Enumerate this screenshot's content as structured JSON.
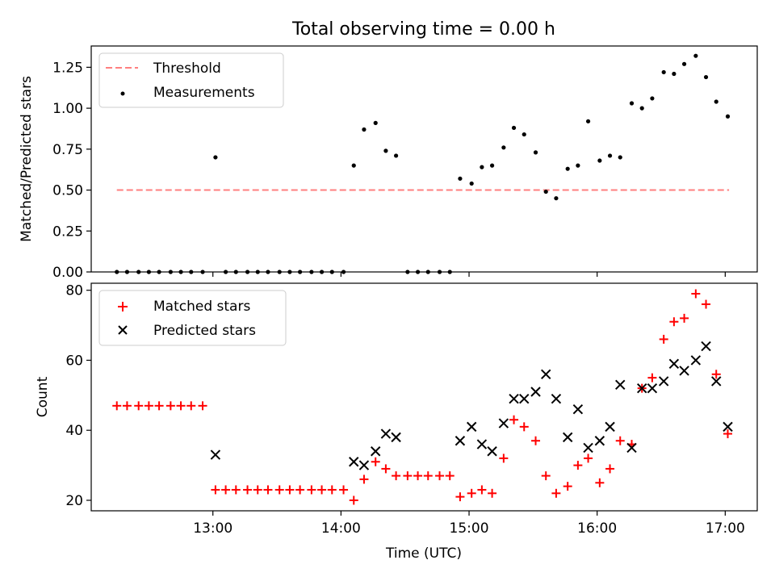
{
  "title": "Total observing time = 0.00 h",
  "colors": {
    "threshold": "#ff7f7f",
    "measurements": "#000000",
    "matched": "#ff0000",
    "predicted": "#000000"
  },
  "chart_data": [
    {
      "type": "scatter",
      "title": "Total observing time = 0.00 h",
      "xlabel": "",
      "ylabel": "Matched/Predicted stars",
      "x_unit": "hours UTC",
      "xlim": [
        12.05,
        17.25
      ],
      "ylim": [
        0,
        1.38
      ],
      "yticks": [
        0.0,
        0.25,
        0.5,
        0.75,
        1.0,
        1.25
      ],
      "ytick_labels": [
        "0.00",
        "0.25",
        "0.50",
        "0.75",
        "1.00",
        "1.25"
      ],
      "xticks": [
        13,
        14,
        15,
        16,
        17
      ],
      "legend_position": "top-left",
      "legend": [
        "Threshold",
        "Measurements"
      ],
      "threshold": {
        "name": "Threshold",
        "y": 0.5,
        "x_range": [
          12.25,
          17.03
        ],
        "style": "dashed"
      },
      "series": [
        {
          "name": "Measurements",
          "marker": "dot",
          "points": [
            [
              12.25,
              0.0
            ],
            [
              12.33,
              0.0
            ],
            [
              12.42,
              0.0
            ],
            [
              12.5,
              0.0
            ],
            [
              12.58,
              0.0
            ],
            [
              12.67,
              0.0
            ],
            [
              12.75,
              0.0
            ],
            [
              12.83,
              0.0
            ],
            [
              12.92,
              0.0
            ],
            [
              13.02,
              0.7
            ],
            [
              13.1,
              0.0
            ],
            [
              13.18,
              0.0
            ],
            [
              13.27,
              0.0
            ],
            [
              13.35,
              0.0
            ],
            [
              13.43,
              0.0
            ],
            [
              13.52,
              0.0
            ],
            [
              13.6,
              0.0
            ],
            [
              13.68,
              0.0
            ],
            [
              13.77,
              0.0
            ],
            [
              13.85,
              0.0
            ],
            [
              13.93,
              0.0
            ],
            [
              14.02,
              0.0
            ],
            [
              14.1,
              0.65
            ],
            [
              14.18,
              0.87
            ],
            [
              14.27,
              0.91
            ],
            [
              14.35,
              0.74
            ],
            [
              14.43,
              0.71
            ],
            [
              14.52,
              0.0
            ],
            [
              14.6,
              0.0
            ],
            [
              14.68,
              0.0
            ],
            [
              14.77,
              0.0
            ],
            [
              14.85,
              0.0
            ],
            [
              14.93,
              0.57
            ],
            [
              15.02,
              0.54
            ],
            [
              15.1,
              0.64
            ],
            [
              15.18,
              0.65
            ],
            [
              15.27,
              0.76
            ],
            [
              15.35,
              0.88
            ],
            [
              15.43,
              0.84
            ],
            [
              15.52,
              0.73
            ],
            [
              15.6,
              0.49
            ],
            [
              15.68,
              0.45
            ],
            [
              15.77,
              0.63
            ],
            [
              15.85,
              0.65
            ],
            [
              15.93,
              0.92
            ],
            [
              16.02,
              0.68
            ],
            [
              16.1,
              0.71
            ],
            [
              16.18,
              0.7
            ],
            [
              16.27,
              1.03
            ],
            [
              16.35,
              1.0
            ],
            [
              16.43,
              1.06
            ],
            [
              16.52,
              1.22
            ],
            [
              16.6,
              1.21
            ],
            [
              16.68,
              1.27
            ],
            [
              16.77,
              1.32
            ],
            [
              16.85,
              1.19
            ],
            [
              16.93,
              1.04
            ],
            [
              17.02,
              0.95
            ]
          ]
        }
      ]
    },
    {
      "type": "scatter",
      "xlabel": "Time (UTC)",
      "ylabel": "Count",
      "x_unit": "hours UTC",
      "xlim": [
        12.05,
        17.25
      ],
      "ylim": [
        17,
        82
      ],
      "yticks": [
        20,
        40,
        60,
        80
      ],
      "ytick_labels": [
        "20",
        "40",
        "60",
        "80"
      ],
      "xticks": [
        13,
        14,
        15,
        16,
        17
      ],
      "xtick_labels": [
        "13:00",
        "14:00",
        "15:00",
        "16:00",
        "17:00"
      ],
      "legend_position": "top-left",
      "legend": [
        "Matched stars",
        "Predicted stars"
      ],
      "series": [
        {
          "name": "Matched stars",
          "marker": "plus",
          "points": [
            [
              12.25,
              47
            ],
            [
              12.33,
              47
            ],
            [
              12.42,
              47
            ],
            [
              12.5,
              47
            ],
            [
              12.58,
              47
            ],
            [
              12.67,
              47
            ],
            [
              12.75,
              47
            ],
            [
              12.83,
              47
            ],
            [
              12.92,
              47
            ],
            [
              13.02,
              23
            ],
            [
              13.1,
              23
            ],
            [
              13.18,
              23
            ],
            [
              13.27,
              23
            ],
            [
              13.35,
              23
            ],
            [
              13.43,
              23
            ],
            [
              13.52,
              23
            ],
            [
              13.6,
              23
            ],
            [
              13.68,
              23
            ],
            [
              13.77,
              23
            ],
            [
              13.85,
              23
            ],
            [
              13.93,
              23
            ],
            [
              14.02,
              23
            ],
            [
              14.1,
              20
            ],
            [
              14.18,
              26
            ],
            [
              14.27,
              31
            ],
            [
              14.35,
              29
            ],
            [
              14.43,
              27
            ],
            [
              14.52,
              27
            ],
            [
              14.6,
              27
            ],
            [
              14.68,
              27
            ],
            [
              14.77,
              27
            ],
            [
              14.85,
              27
            ],
            [
              14.93,
              21
            ],
            [
              15.02,
              22
            ],
            [
              15.1,
              23
            ],
            [
              15.18,
              22
            ],
            [
              15.27,
              32
            ],
            [
              15.35,
              43
            ],
            [
              15.43,
              41
            ],
            [
              15.52,
              37
            ],
            [
              15.6,
              27
            ],
            [
              15.68,
              22
            ],
            [
              15.77,
              24
            ],
            [
              15.85,
              30
            ],
            [
              15.93,
              32
            ],
            [
              16.02,
              25
            ],
            [
              16.1,
              29
            ],
            [
              16.18,
              37
            ],
            [
              16.27,
              36
            ],
            [
              16.35,
              52
            ],
            [
              16.43,
              55
            ],
            [
              16.52,
              66
            ],
            [
              16.6,
              71
            ],
            [
              16.68,
              72
            ],
            [
              16.77,
              79
            ],
            [
              16.85,
              76
            ],
            [
              16.93,
              56
            ],
            [
              17.02,
              39
            ]
          ]
        },
        {
          "name": "Predicted stars",
          "marker": "x",
          "points": [
            [
              13.02,
              33
            ],
            [
              14.1,
              31
            ],
            [
              14.18,
              30
            ],
            [
              14.27,
              34
            ],
            [
              14.35,
              39
            ],
            [
              14.43,
              38
            ],
            [
              14.93,
              37
            ],
            [
              15.02,
              41
            ],
            [
              15.1,
              36
            ],
            [
              15.18,
              34
            ],
            [
              15.27,
              42
            ],
            [
              15.35,
              49
            ],
            [
              15.43,
              49
            ],
            [
              15.52,
              51
            ],
            [
              15.6,
              56
            ],
            [
              15.68,
              49
            ],
            [
              15.77,
              38
            ],
            [
              15.85,
              46
            ],
            [
              15.93,
              35
            ],
            [
              16.02,
              37
            ],
            [
              16.1,
              41
            ],
            [
              16.18,
              53
            ],
            [
              16.27,
              35
            ],
            [
              16.35,
              52
            ],
            [
              16.43,
              52
            ],
            [
              16.52,
              54
            ],
            [
              16.6,
              59
            ],
            [
              16.68,
              57
            ],
            [
              16.77,
              60
            ],
            [
              16.85,
              64
            ],
            [
              16.93,
              54
            ],
            [
              17.02,
              41
            ]
          ]
        }
      ]
    }
  ]
}
